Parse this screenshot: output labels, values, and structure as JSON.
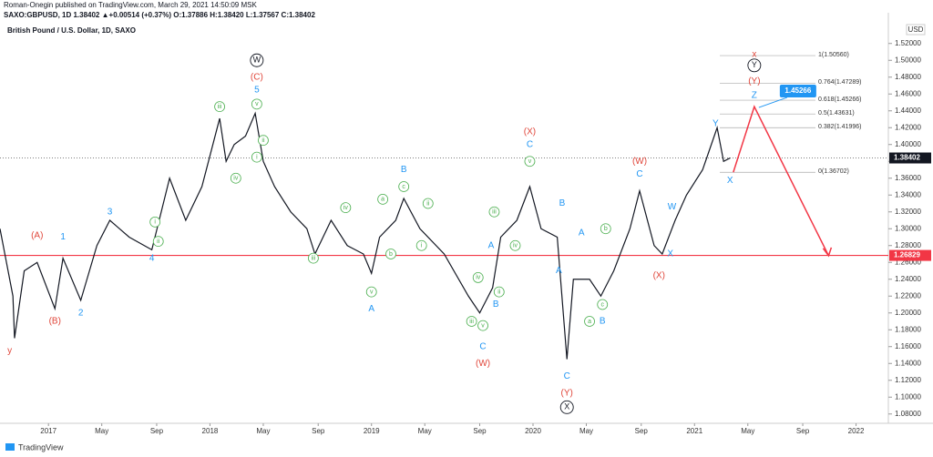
{
  "header": {
    "published": "Roman-Onegin published on TradingView.com, March 29, 2021 14:50:09 MSK",
    "quote": "SAXO:GBPUSD, 1D 1.38402 ▲+0.00514 (+0.37%) O:1.37886 H:1.38420 L:1.37567 C:1.38402"
  },
  "footer": {
    "brand": "TradingView"
  },
  "chart_data": {
    "type": "line",
    "title": "British Pound / U.S. Dollar, 1D, SAXO",
    "currency": "USD",
    "color": "#131722",
    "x": [
      2016.7,
      2016.75,
      2016.78,
      2016.79,
      2016.85,
      2016.93,
      2017.04,
      2017.09,
      2017.2,
      2017.3,
      2017.38,
      2017.5,
      2017.64,
      2017.75,
      2017.85,
      2017.95,
      2018.06,
      2018.1,
      2018.15,
      2018.22,
      2018.28,
      2018.33,
      2018.4,
      2018.5,
      2018.6,
      2018.65,
      2018.75,
      2018.85,
      2018.95,
      2019.0,
      2019.05,
      2019.15,
      2019.2,
      2019.3,
      2019.45,
      2019.6,
      2019.67,
      2019.75,
      2019.8,
      2019.9,
      2019.98,
      2020.05,
      2020.15,
      2020.21,
      2020.25,
      2020.35,
      2020.42,
      2020.5,
      2020.6,
      2020.66,
      2020.75,
      2020.8,
      2020.88,
      2020.95,
      2021.05,
      2021.14,
      2021.18,
      2021.22
    ],
    "values": [
      1.3,
      1.25,
      1.22,
      1.17,
      1.25,
      1.26,
      1.205,
      1.265,
      1.215,
      1.28,
      1.31,
      1.29,
      1.275,
      1.36,
      1.31,
      1.35,
      1.431,
      1.38,
      1.4,
      1.41,
      1.437,
      1.38,
      1.35,
      1.32,
      1.3,
      1.27,
      1.31,
      1.28,
      1.27,
      1.247,
      1.29,
      1.31,
      1.336,
      1.3,
      1.27,
      1.22,
      1.2,
      1.23,
      1.29,
      1.31,
      1.35,
      1.3,
      1.29,
      1.145,
      1.24,
      1.24,
      1.22,
      1.25,
      1.3,
      1.345,
      1.28,
      1.27,
      1.31,
      1.34,
      1.37,
      1.42,
      1.38,
      1.38402
    ],
    "xlim": [
      2016.7,
      2022.2
    ],
    "xticks": [
      {
        "value": 2017,
        "label": "2017"
      },
      {
        "value": 2017.33,
        "label": "May"
      },
      {
        "value": 2017.67,
        "label": "Sep"
      },
      {
        "value": 2018,
        "label": "2018"
      },
      {
        "value": 2018.33,
        "label": "May"
      },
      {
        "value": 2018.67,
        "label": "Sep"
      },
      {
        "value": 2019,
        "label": "2019"
      },
      {
        "value": 2019.33,
        "label": "May"
      },
      {
        "value": 2019.67,
        "label": "Sep"
      },
      {
        "value": 2020,
        "label": "2020"
      },
      {
        "value": 2020.33,
        "label": "May"
      },
      {
        "value": 2020.67,
        "label": "Sep"
      },
      {
        "value": 2021,
        "label": "2021"
      },
      {
        "value": 2021.33,
        "label": "May"
      },
      {
        "value": 2021.67,
        "label": "Sep"
      },
      {
        "value": 2022,
        "label": "2022"
      }
    ],
    "ylim": [
      1.07,
      1.55
    ],
    "yticks": [
      {
        "value": 1.08,
        "label": "1.08000"
      },
      {
        "value": 1.1,
        "label": "1.10000"
      },
      {
        "value": 1.12,
        "label": "1.12000"
      },
      {
        "value": 1.14,
        "label": "1.14000"
      },
      {
        "value": 1.16,
        "label": "1.16000"
      },
      {
        "value": 1.18,
        "label": "1.18000"
      },
      {
        "value": 1.2,
        "label": "1.20000"
      },
      {
        "value": 1.22,
        "label": "1.22000"
      },
      {
        "value": 1.24,
        "label": "1.24000"
      },
      {
        "value": 1.26,
        "label": "1.26000"
      },
      {
        "value": 1.28,
        "label": "1.28000"
      },
      {
        "value": 1.3,
        "label": "1.30000"
      },
      {
        "value": 1.32,
        "label": "1.32000"
      },
      {
        "value": 1.34,
        "label": "1.34000"
      },
      {
        "value": 1.36,
        "label": "1.36000"
      },
      {
        "value": 1.38,
        "label": "1.38000"
      },
      {
        "value": 1.4,
        "label": "1.40000"
      },
      {
        "value": 1.42,
        "label": "1.42000"
      },
      {
        "value": 1.44,
        "label": "1.44000"
      },
      {
        "value": 1.46,
        "label": "1.46000"
      },
      {
        "value": 1.48,
        "label": "1.48000"
      },
      {
        "value": 1.5,
        "label": "1.50000"
      },
      {
        "value": 1.52,
        "label": "1.52000"
      }
    ],
    "last_price": 1.38402,
    "support": {
      "value": 1.26829,
      "color": "#f23645"
    },
    "target": 1.45266,
    "projection": {
      "x": [
        2021.24,
        2021.37,
        2021.83
      ],
      "values": [
        1.367,
        1.445,
        1.268
      ],
      "color": "#f23645"
    },
    "fibs": [
      {
        "label": "1(1.50560)",
        "value": 1.5056
      },
      {
        "label": "0.764(1.47289)",
        "value": 1.47289
      },
      {
        "label": "0.618(1.45266)",
        "value": 1.45266
      },
      {
        "label": "0.5(1.43631)",
        "value": 1.43631
      },
      {
        "label": "0.382(1.41996)",
        "value": 1.41996
      },
      {
        "label": "0(1.36702)",
        "value": 1.36702
      }
    ],
    "annotations": [
      {
        "text": "y",
        "x": 2016.76,
        "y": 1.155,
        "style": "red"
      },
      {
        "text": "(A)",
        "x": 2016.93,
        "y": 1.292,
        "style": "red"
      },
      {
        "text": "(B)",
        "x": 2017.04,
        "y": 1.19,
        "style": "red"
      },
      {
        "text": "1",
        "x": 2017.09,
        "y": 1.29,
        "style": "blue"
      },
      {
        "text": "2",
        "x": 2017.2,
        "y": 1.2,
        "style": "blue"
      },
      {
        "text": "3",
        "x": 2017.38,
        "y": 1.32,
        "style": "blue"
      },
      {
        "text": "4",
        "x": 2017.64,
        "y": 1.265,
        "style": "blue"
      },
      {
        "text": "i",
        "x": 2017.66,
        "y": 1.308,
        "style": "green"
      },
      {
        "text": "ii",
        "x": 2017.68,
        "y": 1.285,
        "style": "green"
      },
      {
        "text": "iii",
        "x": 2018.06,
        "y": 1.445,
        "style": "green"
      },
      {
        "text": "iv",
        "x": 2018.16,
        "y": 1.36,
        "style": "green"
      },
      {
        "text": "W",
        "x": 2018.29,
        "y": 1.5,
        "style": "black"
      },
      {
        "text": "(C)",
        "x": 2018.29,
        "y": 1.48,
        "style": "red"
      },
      {
        "text": "5",
        "x": 2018.29,
        "y": 1.465,
        "style": "blue"
      },
      {
        "text": "v",
        "x": 2018.29,
        "y": 1.448,
        "style": "green"
      },
      {
        "text": "ii",
        "x": 2018.33,
        "y": 1.405,
        "style": "green"
      },
      {
        "text": "i",
        "x": 2018.29,
        "y": 1.385,
        "style": "green"
      },
      {
        "text": "iii",
        "x": 2018.64,
        "y": 1.265,
        "style": "green"
      },
      {
        "text": "iv",
        "x": 2018.84,
        "y": 1.325,
        "style": "green"
      },
      {
        "text": "v",
        "x": 2019.0,
        "y": 1.225,
        "style": "green"
      },
      {
        "text": "A",
        "x": 2019.0,
        "y": 1.205,
        "style": "blue"
      },
      {
        "text": "a",
        "x": 2019.07,
        "y": 1.335,
        "style": "green"
      },
      {
        "text": "b",
        "x": 2019.12,
        "y": 1.27,
        "style": "green"
      },
      {
        "text": "c",
        "x": 2019.2,
        "y": 1.35,
        "style": "green"
      },
      {
        "text": "B",
        "x": 2019.2,
        "y": 1.37,
        "style": "blue"
      },
      {
        "text": "ii",
        "x": 2019.35,
        "y": 1.33,
        "style": "green"
      },
      {
        "text": "i",
        "x": 2019.31,
        "y": 1.28,
        "style": "green"
      },
      {
        "text": "A",
        "x": 2019.74,
        "y": 1.28,
        "style": "blue"
      },
      {
        "text": "iv",
        "x": 2019.66,
        "y": 1.242,
        "style": "green"
      },
      {
        "text": "iii",
        "x": 2019.62,
        "y": 1.19,
        "style": "green"
      },
      {
        "text": "v",
        "x": 2019.69,
        "y": 1.185,
        "style": "green"
      },
      {
        "text": "C",
        "x": 2019.69,
        "y": 1.16,
        "style": "blue"
      },
      {
        "text": "(W)",
        "x": 2019.69,
        "y": 1.14,
        "style": "red"
      },
      {
        "text": "ii",
        "x": 2019.79,
        "y": 1.225,
        "style": "green"
      },
      {
        "text": "B",
        "x": 2019.77,
        "y": 1.21,
        "style": "blue"
      },
      {
        "text": "iii",
        "x": 2019.76,
        "y": 1.32,
        "style": "green"
      },
      {
        "text": "iv",
        "x": 2019.89,
        "y": 1.28,
        "style": "green"
      },
      {
        "text": "v",
        "x": 2019.98,
        "y": 1.38,
        "style": "green"
      },
      {
        "text": "C",
        "x": 2019.98,
        "y": 1.4,
        "style": "blue"
      },
      {
        "text": "(X)",
        "x": 2019.98,
        "y": 1.415,
        "style": "red"
      },
      {
        "text": "B",
        "x": 2020.18,
        "y": 1.33,
        "style": "blue"
      },
      {
        "text": "A",
        "x": 2020.16,
        "y": 1.25,
        "style": "blue"
      },
      {
        "text": "A",
        "x": 2020.3,
        "y": 1.295,
        "style": "blue"
      },
      {
        "text": "C",
        "x": 2020.21,
        "y": 1.125,
        "style": "blue"
      },
      {
        "text": "(Y)",
        "x": 2020.21,
        "y": 1.105,
        "style": "red"
      },
      {
        "text": "X",
        "x": 2020.21,
        "y": 1.088,
        "style": "black"
      },
      {
        "text": "b",
        "x": 2020.45,
        "y": 1.3,
        "style": "green"
      },
      {
        "text": "a",
        "x": 2020.35,
        "y": 1.19,
        "style": "green"
      },
      {
        "text": "c",
        "x": 2020.43,
        "y": 1.21,
        "style": "green"
      },
      {
        "text": "B",
        "x": 2020.43,
        "y": 1.19,
        "style": "blue"
      },
      {
        "text": "C",
        "x": 2020.66,
        "y": 1.365,
        "style": "blue"
      },
      {
        "text": "(W)",
        "x": 2020.66,
        "y": 1.38,
        "style": "red"
      },
      {
        "text": "W",
        "x": 2020.86,
        "y": 1.326,
        "style": "blue"
      },
      {
        "text": "(X)",
        "x": 2020.78,
        "y": 1.244,
        "style": "red"
      },
      {
        "text": "X",
        "x": 2020.85,
        "y": 1.27,
        "style": "blue"
      },
      {
        "text": "Y",
        "x": 2021.13,
        "y": 1.425,
        "style": "blue"
      },
      {
        "text": "X",
        "x": 2021.22,
        "y": 1.357,
        "style": "blue"
      },
      {
        "text": "Z",
        "x": 2021.37,
        "y": 1.458,
        "style": "blue"
      },
      {
        "text": "(Y)",
        "x": 2021.37,
        "y": 1.475,
        "style": "red"
      },
      {
        "text": "Y",
        "x": 2021.37,
        "y": 1.494,
        "style": "black"
      },
      {
        "text": "x",
        "x": 2021.37,
        "y": 1.507,
        "style": "red"
      }
    ]
  }
}
